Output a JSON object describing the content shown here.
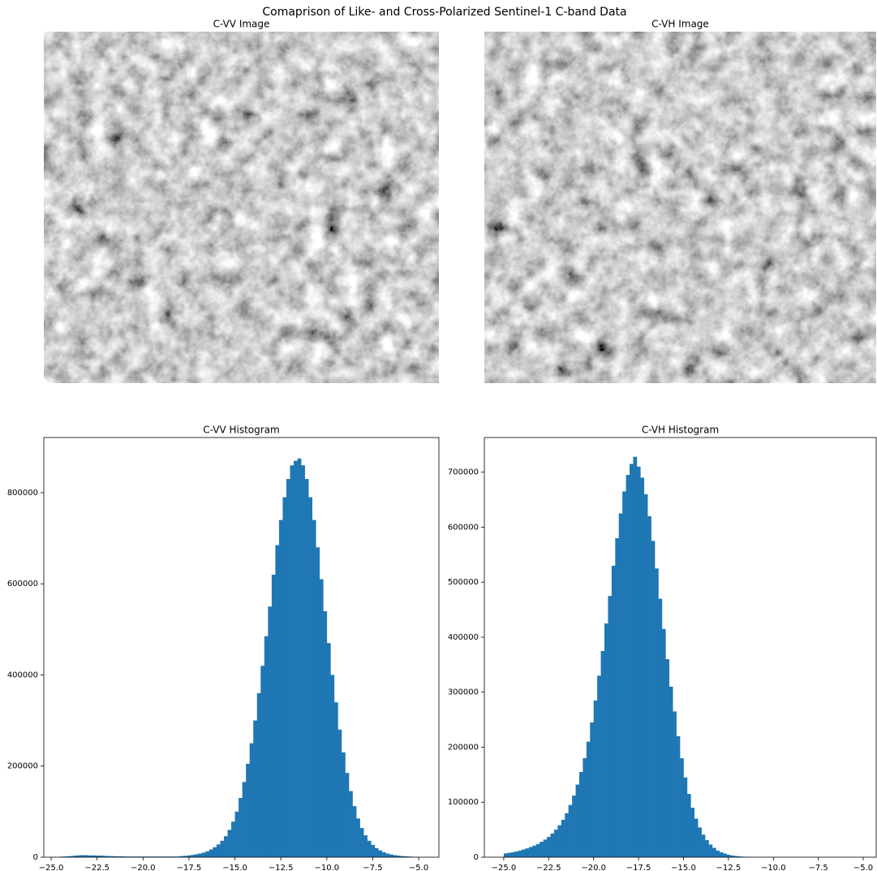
{
  "title": "Comaprison of Like- and Cross-Polarized Sentinel-1 C-band Data",
  "chart_data": [
    {
      "type": "image",
      "title": "C-VV Image"
    },
    {
      "type": "image",
      "title": "C-VH Image"
    },
    {
      "type": "histogram",
      "title": "C-VV Histogram",
      "color": "#1f77b4",
      "bins": [
        -25,
        -24.8,
        -24.6,
        -24.4,
        -24.2,
        -24,
        -23.8,
        -23.6,
        -23.4,
        -23.2,
        -23,
        -22.8,
        -22.6,
        -22.4,
        -22.2,
        -22,
        -21.8,
        -21.6,
        -21.4,
        -21.2,
        -21,
        -20.8,
        -20.6,
        -20.4,
        -20.2,
        -20,
        -19.8,
        -19.6,
        -19.4,
        -19.2,
        -19,
        -18.8,
        -18.6,
        -18.4,
        -18.2,
        -18,
        -17.8,
        -17.6,
        -17.4,
        -17.2,
        -17,
        -16.8,
        -16.6,
        -16.4,
        -16.2,
        -16,
        -15.8,
        -15.6,
        -15.4,
        -15.2,
        -15,
        -14.8,
        -14.6,
        -14.4,
        -14.2,
        -14,
        -13.8,
        -13.6,
        -13.4,
        -13.2,
        -13,
        -12.8,
        -12.6,
        -12.4,
        -12.2,
        -12,
        -11.8,
        -11.6,
        -11.4,
        -11.2,
        -11,
        -10.8,
        -10.6,
        -10.4,
        -10.2,
        -10,
        -9.8,
        -9.6,
        -9.4,
        -9.2,
        -9,
        -8.8,
        -8.6,
        -8.4,
        -8.2,
        -8,
        -7.8,
        -7.6,
        -7.4,
        -7.2,
        -7,
        -6.8,
        -6.6,
        -6.4,
        -6.2,
        -6,
        -5.8,
        -5.6,
        -5.4,
        -5.2,
        -5
      ],
      "values": [
        0,
        0,
        1000,
        1500,
        2000,
        2500,
        3500,
        4000,
        4500,
        4500,
        4000,
        4000,
        3500,
        3500,
        3000,
        2500,
        2500,
        2000,
        2000,
        2000,
        1500,
        1500,
        1500,
        1500,
        1500,
        1500,
        1500,
        1500,
        1500,
        1500,
        1500,
        1500,
        1500,
        1500,
        1500,
        2500,
        3000,
        4000,
        5000,
        6500,
        8000,
        10000,
        13000,
        17000,
        22000,
        28000,
        36000,
        46000,
        60000,
        78000,
        100000,
        130000,
        165000,
        205000,
        250000,
        300000,
        360000,
        420000,
        485000,
        550000,
        620000,
        685000,
        740000,
        790000,
        830000,
        860000,
        870000,
        875000,
        860000,
        830000,
        790000,
        740000,
        680000,
        610000,
        540000,
        470000,
        400000,
        340000,
        280000,
        230000,
        185000,
        145000,
        112000,
        85000,
        64000,
        48000,
        36000,
        27000,
        20000,
        15000,
        11000,
        8000,
        6000,
        4500,
        3500,
        2500,
        2000,
        1500,
        1000,
        500
      ],
      "xlim": [
        -25.4,
        -3.9
      ],
      "xticks": [
        {
          "value": -25,
          "label": "−25.0"
        },
        {
          "value": -22.5,
          "label": "−22.5"
        },
        {
          "value": -20,
          "label": "−20.0"
        },
        {
          "value": -17.5,
          "label": "−17.5"
        },
        {
          "value": -15,
          "label": "−15.0"
        },
        {
          "value": -12.5,
          "label": "−12.5"
        },
        {
          "value": -10,
          "label": "−10.0"
        },
        {
          "value": -7.5,
          "label": "−7.5"
        },
        {
          "value": -5,
          "label": "−5.0"
        }
      ],
      "ylim": [
        0,
        921000
      ],
      "yticks": [
        0,
        200000,
        400000,
        600000,
        800000
      ]
    },
    {
      "type": "histogram",
      "title": "C-VH Histogram",
      "color": "#1f77b4",
      "bins": [
        -25,
        -24.8,
        -24.6,
        -24.4,
        -24.2,
        -24,
        -23.8,
        -23.6,
        -23.4,
        -23.2,
        -23,
        -22.8,
        -22.6,
        -22.4,
        -22.2,
        -22,
        -21.8,
        -21.6,
        -21.4,
        -21.2,
        -21,
        -20.8,
        -20.6,
        -20.4,
        -20.2,
        -20,
        -19.8,
        -19.6,
        -19.4,
        -19.2,
        -19,
        -18.8,
        -18.6,
        -18.4,
        -18.2,
        -18,
        -17.8,
        -17.6,
        -17.4,
        -17.2,
        -17,
        -16.8,
        -16.6,
        -16.4,
        -16.2,
        -16,
        -15.8,
        -15.6,
        -15.4,
        -15.2,
        -15,
        -14.8,
        -14.6,
        -14.4,
        -14.2,
        -14,
        -13.8,
        -13.6,
        -13.4,
        -13.2,
        -13,
        -12.8,
        -12.6,
        -12.4,
        -12.2,
        -12,
        -11.8,
        -11.6,
        -11.4,
        -11.2,
        -11,
        -10.8,
        -10.6,
        -10.4,
        -10.2,
        -10,
        -9.8,
        -9.6,
        -9.4,
        -9.2,
        -9,
        -8.8,
        -8.6,
        -8.4,
        -8.2,
        -8,
        -7.8,
        -7.6,
        -7.4,
        -7.2,
        -7,
        -6.8,
        -6.6,
        -6.4,
        -6.2,
        -6,
        -5.8,
        -5.6,
        -5.4,
        -5.2,
        -5
      ],
      "values": [
        7000,
        8000,
        9000,
        10500,
        12000,
        14000,
        16000,
        18500,
        21000,
        24000,
        28000,
        32000,
        37000,
        43000,
        50000,
        58000,
        68000,
        80000,
        95000,
        112000,
        132000,
        155000,
        180000,
        210000,
        245000,
        285000,
        330000,
        375000,
        425000,
        475000,
        530000,
        580000,
        625000,
        665000,
        695000,
        715000,
        728000,
        710000,
        690000,
        660000,
        620000,
        575000,
        525000,
        470000,
        415000,
        360000,
        310000,
        265000,
        220000,
        180000,
        145000,
        115000,
        90000,
        70000,
        54000,
        41000,
        31000,
        23000,
        17000,
        12000,
        9000,
        6500,
        4500,
        3200,
        2200,
        1500,
        1000,
        700,
        500,
        300,
        200,
        100,
        50,
        0,
        0,
        0,
        0,
        0,
        0,
        0,
        0,
        0,
        0,
        0,
        0,
        0,
        0,
        0,
        0,
        0,
        0,
        0,
        0,
        0,
        0,
        0,
        0,
        0,
        0,
        0
      ],
      "xlim": [
        -26.08,
        -4.28
      ],
      "xticks": [
        {
          "value": -25,
          "label": "−25.0"
        },
        {
          "value": -22.5,
          "label": "−22.5"
        },
        {
          "value": -20,
          "label": "−20.0"
        },
        {
          "value": -17.5,
          "label": "−17.5"
        },
        {
          "value": -15,
          "label": "−15.0"
        },
        {
          "value": -12.5,
          "label": "−12.5"
        },
        {
          "value": -10,
          "label": "−10.0"
        },
        {
          "value": -7.5,
          "label": "−7.5"
        },
        {
          "value": -5,
          "label": "−5.0"
        }
      ],
      "ylim": [
        0,
        763000
      ],
      "yticks": [
        0,
        100000,
        200000,
        300000,
        400000,
        500000,
        600000,
        700000
      ]
    }
  ]
}
